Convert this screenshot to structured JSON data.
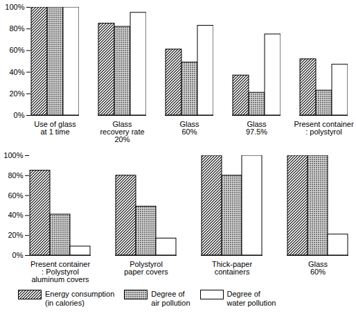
{
  "chart_data": [
    {
      "type": "bar",
      "categories": [
        "Use of glass\nat 1 time",
        "Glass\nrecovery rate\n20%",
        "Glass\n60%",
        "Glass\n97.5%",
        "Present container\n: polystyrol"
      ],
      "series": [
        {
          "name": "Energy consumption\n(in calories)",
          "values": [
            100,
            85,
            61,
            37,
            52
          ]
        },
        {
          "name": "Degree of\nair pollution",
          "values": [
            100,
            82,
            49,
            21,
            23
          ]
        },
        {
          "name": "Degree of\nwater pollution",
          "values": [
            100,
            95,
            83,
            75,
            47
          ]
        }
      ],
      "ylim": [
        0,
        100
      ],
      "yticks": [
        {
          "value": 0,
          "label": "0%"
        },
        {
          "value": 20,
          "label": "20%"
        },
        {
          "value": 40,
          "label": "40%"
        },
        {
          "value": 60,
          "label": "60%"
        },
        {
          "value": 80,
          "label": "80%"
        },
        {
          "value": 100,
          "label": "100%"
        }
      ]
    },
    {
      "type": "bar",
      "categories": [
        "Present container\n: Polystyrol\naluminum covers",
        "Polystyrol\npaper covers",
        "Thick-paper\ncontainers",
        "Glass\n60%"
      ],
      "series": [
        {
          "name": "Energy consumption\n(in calories)",
          "values": [
            85,
            80,
            100,
            100
          ]
        },
        {
          "name": "Degree of\nair pollution",
          "values": [
            41,
            49,
            80,
            100
          ]
        },
        {
          "name": "Degree of\nwater pollution",
          "values": [
            9,
            17,
            100,
            21
          ]
        }
      ],
      "ylim": [
        0,
        100
      ],
      "yticks": [
        {
          "value": 0,
          "label": "0%"
        },
        {
          "value": 20,
          "label": "20%"
        },
        {
          "value": 40,
          "label": "40%"
        },
        {
          "value": 60,
          "label": "60%"
        },
        {
          "value": 80,
          "label": "80%"
        },
        {
          "value": 100,
          "label": "100%"
        }
      ],
      "legend": "bottom"
    }
  ]
}
